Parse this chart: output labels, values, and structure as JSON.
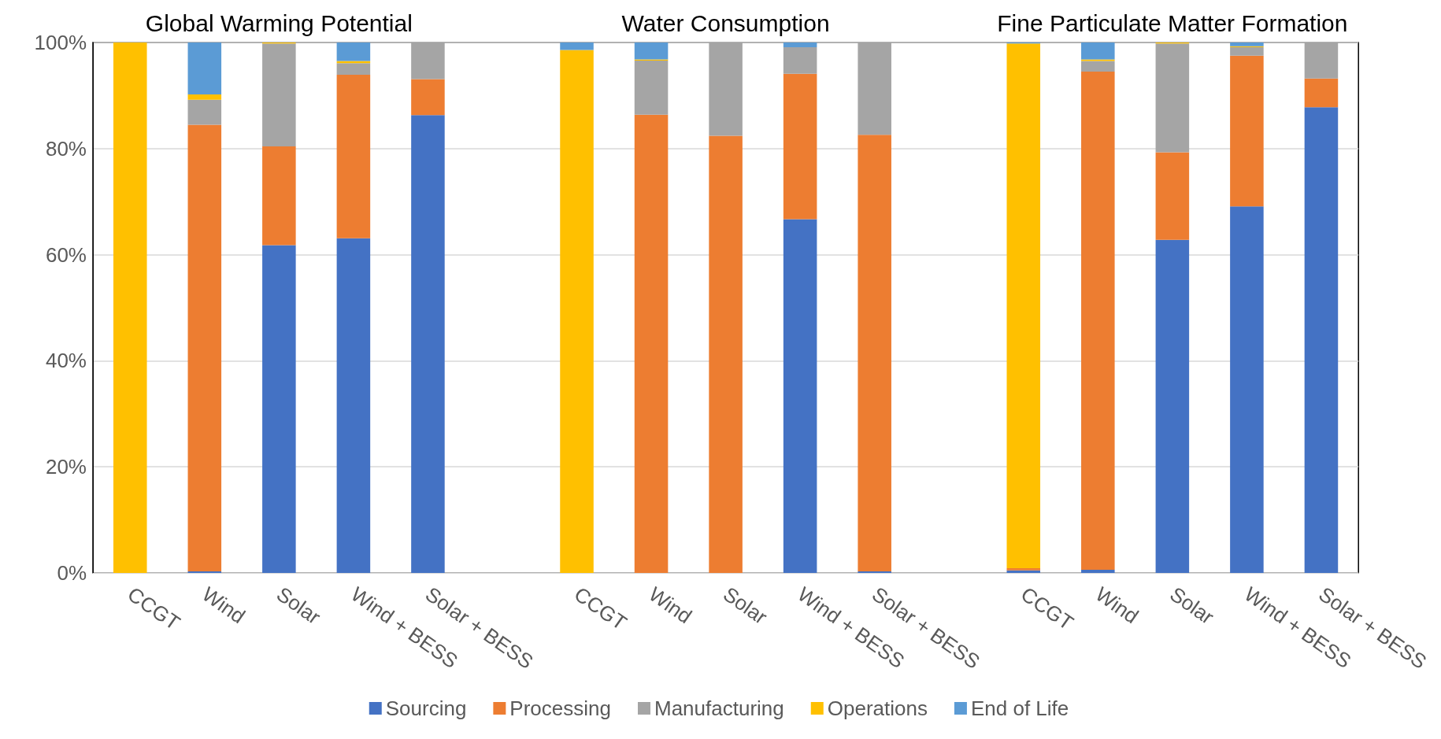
{
  "chart_data": {
    "type": "bar",
    "stacked": true,
    "annotations": [
      "Global Warming Potential",
      "Water Consumption",
      "Fine Particulate Matter Formation"
    ],
    "categories": [
      "CCGT",
      "Wind",
      "Solar",
      "Wind + BESS",
      "Solar + BESS",
      null,
      "CCGT",
      "Wind",
      "Solar",
      "Wind + BESS",
      "Solar + BESS",
      null,
      "CCGT",
      "Wind",
      "Solar",
      "Wind + BESS",
      "Solar + BESS"
    ],
    "series": [
      {
        "name": "Sourcing",
        "color": "#4472c4",
        "values": [
          0,
          0.3,
          61.8,
          63.1,
          86.3,
          null,
          0,
          0,
          0,
          66.7,
          0.3,
          null,
          0.5,
          0.6,
          62.8,
          69.1,
          87.8
        ]
      },
      {
        "name": "Processing",
        "color": "#ed7d31",
        "values": [
          0,
          84.2,
          18.6,
          30.8,
          6.8,
          null,
          0,
          86.4,
          82.4,
          27.4,
          82.3,
          null,
          0.4,
          93.9,
          16.5,
          28.4,
          5.4
        ]
      },
      {
        "name": "Manufacturing",
        "color": "#a5a5a5",
        "values": [
          0,
          4.7,
          19.4,
          2.2,
          6.9,
          null,
          0,
          10.2,
          17.6,
          5.0,
          17.4,
          null,
          0,
          2.0,
          20.5,
          1.6,
          6.8
        ]
      },
      {
        "name": "Operations",
        "color": "#ffc000",
        "values": [
          100,
          1.0,
          0.2,
          0.4,
          0,
          null,
          98.6,
          0.2,
          0,
          0,
          0,
          null,
          98.9,
          0.3,
          0.2,
          0.2,
          0
        ]
      },
      {
        "name": "End of Life",
        "color": "#5b9bd5",
        "values": [
          0,
          9.8,
          0,
          3.5,
          0,
          null,
          1.4,
          3.2,
          0,
          0.9,
          0,
          null,
          0.2,
          3.2,
          0,
          0.8,
          0
        ]
      }
    ],
    "ylim": [
      0,
      100
    ],
    "yticks": [
      {
        "value": 0,
        "label": "0%"
      },
      {
        "value": 20,
        "label": "20%"
      },
      {
        "value": 40,
        "label": "40%"
      },
      {
        "value": 60,
        "label": "60%"
      },
      {
        "value": 80,
        "label": "80%"
      },
      {
        "value": 100,
        "label": "100%"
      }
    ],
    "grid": "y",
    "legend": "bottom"
  }
}
